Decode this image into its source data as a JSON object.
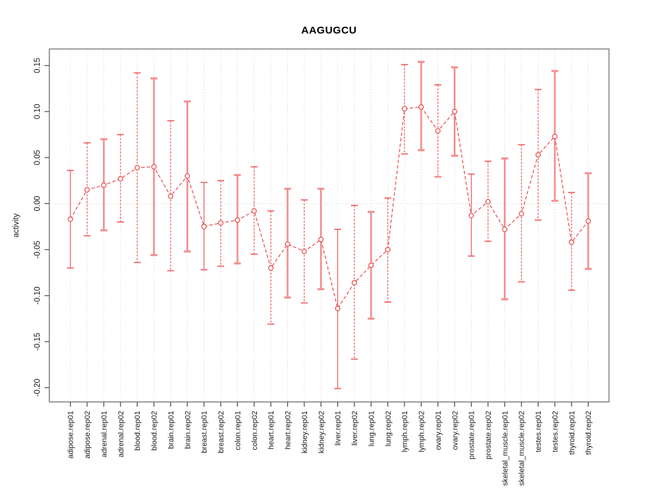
{
  "chart_data": {
    "type": "line",
    "title": "AAGUGCU",
    "ylabel": "activity",
    "xlabel": "",
    "ylim": [
      -0.2155,
      0.168
    ],
    "grid": "vertical-dotted-per-category, dotted zero line",
    "legend": "none",
    "ytick_values": [
      0.15,
      0.1,
      0.05,
      0.0,
      -0.05,
      -0.1,
      -0.15,
      -0.2
    ],
    "ytick_labels": [
      "0.15",
      "0.10",
      "0.05",
      "0.00",
      "-0.05",
      "-0.10",
      "-0.15",
      "-0.20"
    ],
    "categories": [
      "adipose.rep01",
      "adipose.rep02",
      "adrenal.rep01",
      "adrenal.rep02",
      "blood.rep01",
      "blood.rep02",
      "brain.rep01",
      "brain.rep02",
      "breast.rep01",
      "breast.rep02",
      "colon.rep01",
      "colon.rep02",
      "heart.rep01",
      "heart.rep02",
      "kidney.rep01",
      "kidney.rep02",
      "liver.rep01",
      "liver.rep02",
      "lung.rep01",
      "lung.rep02",
      "lymph.rep01",
      "lymph.rep02",
      "ovary.rep01",
      "ovary.rep02",
      "prostate.rep01",
      "prostate.rep02",
      "skeletal_muscle.rep01",
      "skeletal_muscle.rep02",
      "testes.rep01",
      "testes.rep02",
      "thyroid.rep01",
      "thyroid.rep02"
    ],
    "series": [
      {
        "name": "activity",
        "marker": "open-circle",
        "line_style": "dashed",
        "values": [
          -0.017,
          0.015,
          0.02,
          0.027,
          0.039,
          0.04,
          0.008,
          0.03,
          -0.025,
          -0.021,
          -0.018,
          -0.008,
          -0.07,
          -0.044,
          -0.052,
          -0.039,
          -0.114,
          -0.086,
          -0.067,
          -0.05,
          0.103,
          0.105,
          0.079,
          0.1,
          -0.013,
          0.002,
          -0.028,
          -0.011,
          0.053,
          0.073,
          -0.042,
          -0.019
        ],
        "ci_low": [
          -0.07,
          -0.035,
          -0.029,
          -0.02,
          -0.064,
          -0.056,
          -0.073,
          -0.052,
          -0.072,
          -0.068,
          -0.065,
          -0.055,
          -0.131,
          -0.102,
          -0.108,
          -0.093,
          -0.201,
          -0.169,
          -0.125,
          -0.107,
          0.054,
          0.058,
          0.029,
          0.052,
          -0.057,
          -0.041,
          -0.104,
          -0.085,
          -0.018,
          0.003,
          -0.094,
          -0.071
        ],
        "ci_high": [
          0.036,
          0.066,
          0.07,
          0.075,
          0.142,
          0.136,
          0.09,
          0.111,
          0.023,
          0.025,
          0.031,
          0.04,
          -0.008,
          0.016,
          0.004,
          0.016,
          -0.028,
          -0.002,
          -0.009,
          0.006,
          0.151,
          0.154,
          0.129,
          0.148,
          0.032,
          0.046,
          0.049,
          0.064,
          0.124,
          0.144,
          0.012,
          0.033
        ],
        "bar_styles": [
          "thin",
          "dash",
          "thick",
          "dash",
          "dash",
          "thick",
          "dash",
          "thick",
          "thin",
          "dash",
          "thick",
          "dash",
          "dash",
          "thick",
          "dash",
          "thick",
          "thin",
          "dash",
          "thick",
          "dash",
          "dash",
          "thick",
          "dash",
          "thick",
          "thin",
          "dash",
          "thick",
          "dash",
          "dash",
          "thick",
          "dash",
          "thick"
        ]
      }
    ],
    "colors": {
      "main": "#e84a4a",
      "bar_thick": "#f29090",
      "bar_thin": "#ee5c5c",
      "grid": "#dcdcdc",
      "border": "#878787",
      "tick": "#555555",
      "text": "#1a1a1a"
    }
  }
}
